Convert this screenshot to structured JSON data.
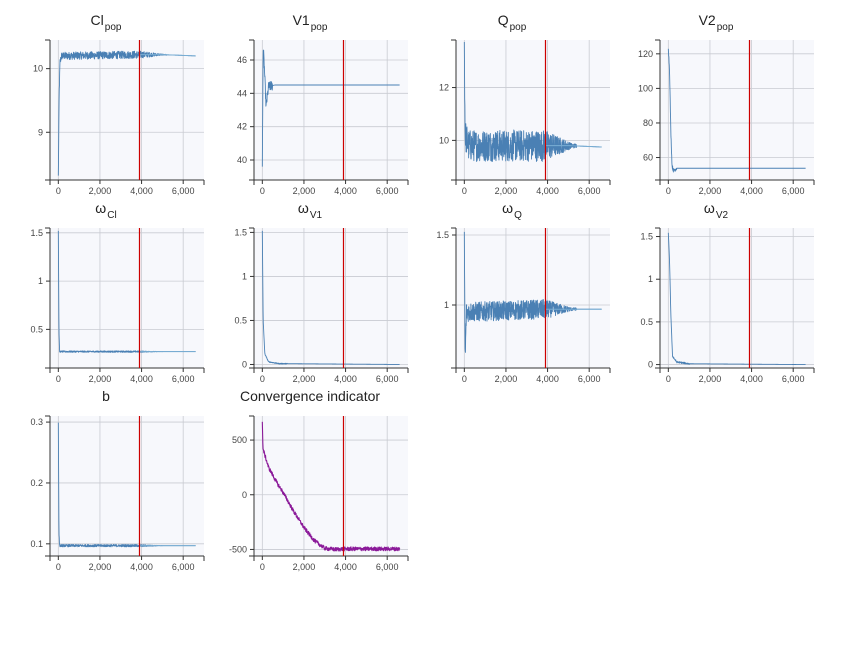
{
  "style": {
    "series_color": "#4a80b4",
    "series_color_smooth": "#79aed4",
    "convergence_color": "#8b1a99",
    "burnin_line_color": "#cc0000",
    "plot_background": "#f7f8fc",
    "grid_color": "#c9cbd2"
  },
  "chart_data": [
    {
      "id": "clpop",
      "type": "line",
      "title_main": "Cl",
      "title_sub": "pop",
      "burn_in_x": 3900,
      "xlim": [
        -400,
        7000
      ],
      "xticks": [
        0,
        2000,
        4000,
        6000
      ],
      "xtick_labels": [
        "0",
        "2,000",
        "4,000",
        "6,000"
      ],
      "ylim": [
        8.25,
        10.45
      ],
      "yticks": [
        9,
        10
      ],
      "ytick_labels": [
        "9",
        "10"
      ],
      "series": [
        {
          "kind": "trace",
          "points": [
            [
              0,
              8.3
            ],
            [
              40,
              9.6
            ],
            [
              80,
              10.1
            ],
            [
              150,
              10.2
            ],
            [
              3900,
              10.22
            ],
            [
              5000,
              10.22
            ],
            [
              6600,
              10.2
            ]
          ],
          "noise": 0.06,
          "noise_end": 5200
        }
      ]
    },
    {
      "id": "v1pop",
      "type": "line",
      "title_main": "V1",
      "title_sub": "pop",
      "burn_in_x": 3900,
      "xlim": [
        -400,
        7000
      ],
      "xticks": [
        0,
        2000,
        4000,
        6000
      ],
      "xtick_labels": [
        "0",
        "2,000",
        "4,000",
        "6,000"
      ],
      "ylim": [
        38.8,
        47.2
      ],
      "yticks": [
        40,
        42,
        44,
        46
      ],
      "ytick_labels": [
        "40",
        "42",
        "44",
        "46"
      ],
      "series": [
        {
          "kind": "trace",
          "points": [
            [
              0,
              39.5
            ],
            [
              40,
              46.8
            ],
            [
              100,
              45.5
            ],
            [
              180,
              43.2
            ],
            [
              300,
              44.4
            ],
            [
              600,
              44.5
            ],
            [
              6600,
              44.5
            ]
          ],
          "noise": 0.3,
          "noise_end": 500
        }
      ]
    },
    {
      "id": "qpop",
      "type": "line",
      "title_main": "Q",
      "title_sub": "pop",
      "burn_in_x": 3900,
      "xlim": [
        -400,
        7000
      ],
      "xticks": [
        0,
        2000,
        4000,
        6000
      ],
      "xtick_labels": [
        "0",
        "2,000",
        "4,000",
        "6,000"
      ],
      "ylim": [
        8.5,
        13.8
      ],
      "yticks": [
        10,
        12
      ],
      "ytick_labels": [
        "10",
        "12"
      ],
      "series": [
        {
          "kind": "trace",
          "points": [
            [
              0,
              13.6
            ],
            [
              40,
              10.2
            ],
            [
              200,
              9.8
            ],
            [
              3900,
              9.8
            ],
            [
              5000,
              9.8
            ],
            [
              6600,
              9.75
            ]
          ],
          "noise": 0.6,
          "noise_end": 5400
        }
      ]
    },
    {
      "id": "v2pop",
      "type": "line",
      "title_main": "V2",
      "title_sub": "pop",
      "burn_in_x": 3900,
      "xlim": [
        -400,
        7000
      ],
      "xticks": [
        0,
        2000,
        4000,
        6000
      ],
      "xtick_labels": [
        "0",
        "2,000",
        "4,000",
        "6,000"
      ],
      "ylim": [
        47,
        128
      ],
      "yticks": [
        60,
        80,
        100,
        120
      ],
      "ytick_labels": [
        "60",
        "80",
        "100",
        "120"
      ],
      "series": [
        {
          "kind": "trace",
          "points": [
            [
              0,
              124
            ],
            [
              60,
              110
            ],
            [
              120,
              75
            ],
            [
              180,
              55
            ],
            [
              250,
              52.5
            ],
            [
              400,
              53.8
            ],
            [
              6600,
              53.8
            ]
          ],
          "noise": 1.2,
          "noise_end": 400
        }
      ]
    },
    {
      "id": "omega_cl",
      "type": "line",
      "title_main": "ω",
      "title_sub": "Cl",
      "burn_in_x": 3900,
      "xlim": [
        -400,
        7000
      ],
      "xticks": [
        0,
        2000,
        4000,
        6000
      ],
      "xtick_labels": [
        "0",
        "2,000",
        "4,000",
        "6,000"
      ],
      "ylim": [
        0.1,
        1.55
      ],
      "yticks": [
        0.5,
        1,
        1.5
      ],
      "ytick_labels": [
        "0.5",
        "1",
        "1.5"
      ],
      "series": [
        {
          "kind": "trace",
          "points": [
            [
              0,
              1.52
            ],
            [
              30,
              0.5
            ],
            [
              60,
              0.27
            ],
            [
              3900,
              0.27
            ],
            [
              6600,
              0.27
            ]
          ],
          "noise": 0.008,
          "noise_end": 5000
        }
      ]
    },
    {
      "id": "omega_v1",
      "type": "line",
      "title_main": "ω",
      "title_sub": "V1",
      "burn_in_x": 3900,
      "xlim": [
        -400,
        7000
      ],
      "xticks": [
        0,
        2000,
        4000,
        6000
      ],
      "xtick_labels": [
        "0",
        "2,000",
        "4,000",
        "6,000"
      ],
      "ylim": [
        -0.04,
        1.55
      ],
      "yticks": [
        0,
        0.5,
        1,
        1.5
      ],
      "ytick_labels": [
        "0",
        "0.5",
        "1",
        "1.5"
      ],
      "series": [
        {
          "kind": "trace",
          "points": [
            [
              0,
              1.52
            ],
            [
              40,
              0.5
            ],
            [
              120,
              0.12
            ],
            [
              300,
              0.03
            ],
            [
              800,
              0.01
            ],
            [
              6600,
              0.0
            ]
          ],
          "noise": 0.005,
          "noise_end": 1200
        }
      ]
    },
    {
      "id": "omega_q",
      "type": "line",
      "title_main": "ω",
      "title_sub": "Q",
      "burn_in_x": 3900,
      "xlim": [
        -400,
        7000
      ],
      "xticks": [
        0,
        2000,
        4000,
        6000
      ],
      "xtick_labels": [
        "0",
        "2,000",
        "4,000",
        "6,000"
      ],
      "ylim": [
        0.55,
        1.55
      ],
      "yticks": [
        1,
        1.5
      ],
      "ytick_labels": [
        "1",
        "1.5"
      ],
      "series": [
        {
          "kind": "trace",
          "points": [
            [
              0,
              1.5
            ],
            [
              40,
              0.6
            ],
            [
              100,
              0.95
            ],
            [
              3900,
              0.97
            ],
            [
              5000,
              0.97
            ],
            [
              6600,
              0.97
            ]
          ],
          "noise": 0.07,
          "noise_end": 5400
        }
      ]
    },
    {
      "id": "omega_v2",
      "type": "line",
      "title_main": "ω",
      "title_sub": "V2",
      "burn_in_x": 3900,
      "xlim": [
        -400,
        7000
      ],
      "xticks": [
        0,
        2000,
        4000,
        6000
      ],
      "xtick_labels": [
        "0",
        "2,000",
        "4,000",
        "6,000"
      ],
      "ylim": [
        -0.04,
        1.6
      ],
      "yticks": [
        0,
        0.5,
        1,
        1.5
      ],
      "ytick_labels": [
        "0",
        "0.5",
        "1",
        "1.5"
      ],
      "series": [
        {
          "kind": "trace",
          "points": [
            [
              0,
              1.55
            ],
            [
              60,
              1.2
            ],
            [
              120,
              0.6
            ],
            [
              200,
              0.1
            ],
            [
              400,
              0.03
            ],
            [
              1000,
              0.01
            ],
            [
              6600,
              0.0
            ]
          ],
          "noise": 0.01,
          "noise_end": 1000
        }
      ]
    },
    {
      "id": "b",
      "type": "line",
      "title_main": "b",
      "title_sub": "",
      "burn_in_x": 3900,
      "xlim": [
        -400,
        7000
      ],
      "xticks": [
        0,
        2000,
        4000,
        6000
      ],
      "xtick_labels": [
        "0",
        "2,000",
        "4,000",
        "6,000"
      ],
      "ylim": [
        0.08,
        0.31
      ],
      "yticks": [
        0.1,
        0.2,
        0.3
      ],
      "ytick_labels": [
        "0.1",
        "0.2",
        "0.3"
      ],
      "series": [
        {
          "kind": "trace",
          "points": [
            [
              0,
              0.3
            ],
            [
              30,
              0.12
            ],
            [
              60,
              0.097
            ],
            [
              3900,
              0.097
            ],
            [
              6600,
              0.097
            ]
          ],
          "noise": 0.002,
          "noise_end": 5000
        }
      ]
    },
    {
      "id": "convergence",
      "type": "line",
      "title_main": "Convergence indicator",
      "title_sub": "",
      "burn_in_x": 3900,
      "xlim": [
        -400,
        7000
      ],
      "xticks": [
        0,
        2000,
        4000,
        6000
      ],
      "xtick_labels": [
        "0",
        "2,000",
        "4,000",
        "6,000"
      ],
      "ylim": [
        -560,
        720
      ],
      "yticks": [
        -500,
        0,
        500
      ],
      "ytick_labels": [
        "-500",
        "0",
        "500"
      ],
      "series": [
        {
          "kind": "convergence",
          "points": [
            [
              0,
              680
            ],
            [
              30,
              420
            ],
            [
              300,
              250
            ],
            [
              700,
              110
            ],
            [
              1000,
              20
            ],
            [
              1500,
              -150
            ],
            [
              2000,
              -300
            ],
            [
              2500,
              -420
            ],
            [
              3000,
              -490
            ],
            [
              3500,
              -500
            ],
            [
              4000,
              -495
            ],
            [
              5000,
              -495
            ],
            [
              6600,
              -495
            ]
          ],
          "noise": 18,
          "noise_end": 6600
        }
      ]
    }
  ]
}
